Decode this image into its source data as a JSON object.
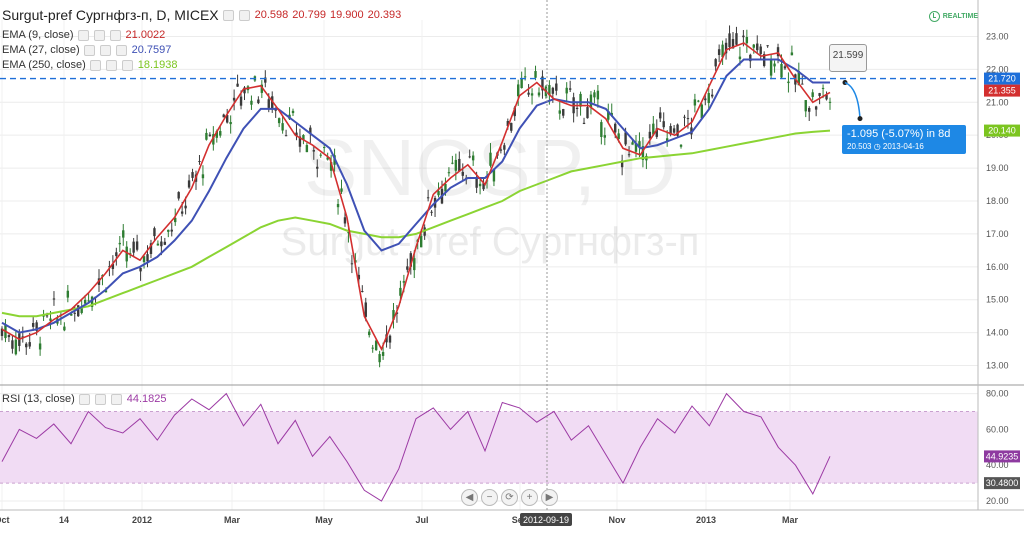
{
  "header": {
    "title": "Surgut-pref Сургнфгз-п, D, MICEX",
    "ohlc": {
      "open": "20.598",
      "high": "20.799",
      "low": "19.900",
      "close": "20.393"
    },
    "realtime_label": "REALTIME"
  },
  "indicators": [
    {
      "label": "EMA (9, close)",
      "value": "21.0022",
      "color": "#d32f2f"
    },
    {
      "label": "EMA (27, close)",
      "value": "20.7597",
      "color": "#3f51b5"
    },
    {
      "label": "EMA (250, close)",
      "value": "18.1938",
      "color": "#8bd433"
    }
  ],
  "rsi": {
    "label": "RSI (13, close)",
    "value": "44.1825",
    "axis_value": "44.9235",
    "color": "#9c3aa4"
  },
  "projection": {
    "target_label": "21.599",
    "change_text": "-1.095 (-5.07%) in 8d",
    "end_value": "20.503",
    "end_date": "2013-04-16"
  },
  "crosshair_date": "2012-09-19",
  "watermark": {
    "symbol": "SNGSP, D",
    "name": "Surgut-pref Сургнфгз-п"
  },
  "colors": {
    "up": "#2e7d32",
    "down": "#3a3a3a",
    "hline": "#1e6fd9",
    "rsi_band": "#f1dcf4"
  },
  "chart_data": [
    {
      "type": "candlestick",
      "title": "Surgut-pref Сургнфгз-п, D, MICEX",
      "x_ticks": [
        "Oct",
        "14",
        "2012",
        "Mar",
        "May",
        "Jul",
        "Sep",
        "Nov",
        "2013",
        "Mar"
      ],
      "ylim": [
        12.5,
        23.5
      ],
      "y_ticks": [
        13,
        14,
        15,
        16,
        17,
        18,
        19,
        20,
        21,
        22,
        23
      ],
      "price_labels": [
        {
          "value": 21.72,
          "text": "21.720",
          "color": "#1e6fd9"
        },
        {
          "value": 21.355,
          "text": "21.355",
          "color": "#d32f2f"
        },
        {
          "value": 20.14,
          "text": "20.140",
          "color": "#7cc520"
        }
      ],
      "horizontal_line": 21.72,
      "series": [
        {
          "name": "EMA (9, close)",
          "type": "line",
          "values": [
            14.1,
            13.8,
            14.0,
            14.4,
            14.7,
            15.2,
            15.8,
            16.5,
            16.2,
            16.9,
            17.5,
            18.4,
            19.7,
            20.6,
            21.4,
            21.5,
            20.8,
            20.0,
            19.7,
            19.3,
            17.5,
            14.5,
            13.5,
            14.8,
            16.6,
            18.2,
            18.7,
            19.1,
            18.5,
            19.8,
            21.2,
            21.6,
            21.1,
            20.9,
            20.9,
            20.5,
            19.6,
            19.4,
            20.2,
            20.0,
            20.4,
            21.5,
            22.6,
            22.8,
            22.4,
            22.5,
            21.7,
            21.0,
            21.3
          ]
        },
        {
          "name": "EMA (27, close)",
          "type": "line",
          "values": [
            14.3,
            14.0,
            14.1,
            14.3,
            14.6,
            14.9,
            15.3,
            15.8,
            16.0,
            16.3,
            16.8,
            17.4,
            18.3,
            19.3,
            20.2,
            20.8,
            20.8,
            20.4,
            20.0,
            19.6,
            18.5,
            17.1,
            16.5,
            16.7,
            17.3,
            17.9,
            18.4,
            18.7,
            18.7,
            19.2,
            20.2,
            20.9,
            21.1,
            21.0,
            21.0,
            20.8,
            20.2,
            19.6,
            19.7,
            19.9,
            20.1,
            20.8,
            21.8,
            22.3,
            22.3,
            22.3,
            22.0,
            21.6,
            21.6
          ]
        },
        {
          "name": "EMA (250, close)",
          "type": "line",
          "values": [
            14.6,
            14.5,
            14.5,
            14.6,
            14.7,
            14.8,
            15.0,
            15.2,
            15.4,
            15.6,
            15.8,
            16.0,
            16.3,
            16.6,
            16.9,
            17.2,
            17.4,
            17.5,
            17.4,
            17.3,
            17.1,
            17.0,
            16.9,
            16.9,
            17.0,
            17.2,
            17.4,
            17.6,
            17.8,
            18.0,
            18.3,
            18.5,
            18.7,
            18.9,
            19.0,
            19.1,
            19.2,
            19.3,
            19.35,
            19.4,
            19.45,
            19.55,
            19.65,
            19.75,
            19.85,
            19.95,
            20.05,
            20.1,
            20.14
          ]
        }
      ],
      "projection": {
        "from": 21.599,
        "to": 20.503,
        "change": "-1.095 (-5.07%) in 8d",
        "end_date": "2013-04-16"
      }
    },
    {
      "type": "line",
      "title": "RSI (13, close)",
      "ylim": [
        15,
        82
      ],
      "y_ticks": [
        20,
        40,
        60,
        80
      ],
      "band": [
        30,
        70
      ],
      "series": [
        {
          "name": "RSI (13, close)",
          "values": [
            42,
            60,
            55,
            63,
            52,
            70,
            61,
            58,
            66,
            54,
            68,
            77,
            71,
            80,
            62,
            74,
            52,
            65,
            45,
            56,
            42,
            26,
            20,
            38,
            66,
            72,
            60,
            70,
            48,
            75,
            72,
            64,
            70,
            54,
            62,
            46,
            30,
            50,
            66,
            58,
            73,
            62,
            80,
            70,
            67,
            50,
            40,
            24,
            45
          ]
        }
      ]
    }
  ]
}
